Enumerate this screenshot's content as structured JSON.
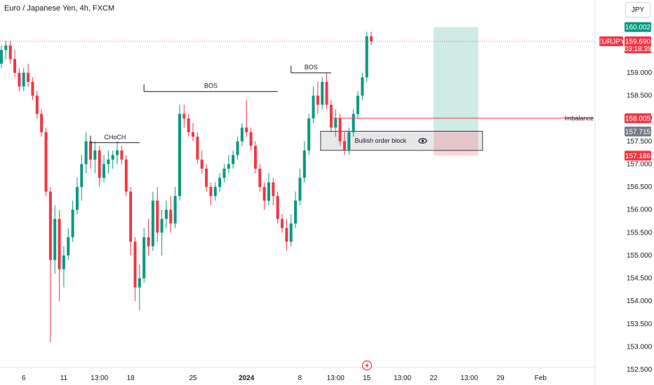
{
  "header": {
    "title": "Euro / Japanese Yen, 4h, FXCM",
    "currency": "JPY"
  },
  "chart_data": {
    "type": "candlestick",
    "symbol": "EURJPY",
    "ylim": [
      152.5,
      160.5
    ],
    "y_ticks": [
      "152.500",
      "153.000",
      "153.500",
      "154.000",
      "154.500",
      "155.000",
      "155.500",
      "156.000",
      "156.500",
      "157.000",
      "157.500",
      "158.000",
      "158.500",
      "159.000"
    ],
    "x_ticks": [
      {
        "label": "6",
        "i": 5
      },
      {
        "label": "11",
        "i": 14
      },
      {
        "label": "13:00",
        "i": 22
      },
      {
        "label": "18",
        "i": 29
      },
      {
        "label": "25",
        "i": 43
      },
      {
        "label": "2024",
        "i": 55,
        "bold": true
      },
      {
        "label": "8",
        "i": 67
      },
      {
        "label": "13:00",
        "i": 75
      },
      {
        "label": "15",
        "i": 82
      },
      {
        "label": "13:00",
        "i": 90
      },
      {
        "label": "22",
        "i": 97
      },
      {
        "label": "13:00",
        "i": 105
      },
      {
        "label": "29",
        "i": 112
      },
      {
        "label": "Feb",
        "i": 121
      }
    ],
    "current_price": {
      "value": "159.690",
      "label": "EURJPY",
      "countdown": "03:18:39",
      "y": 159.69
    },
    "price_tags": [
      {
        "value": "160.002",
        "y": 160.002,
        "color": "#089981"
      },
      {
        "value": "158.005",
        "y": 158.005,
        "color": "#f23645"
      },
      {
        "value": "157.715",
        "y": 157.715,
        "color": "#787b86"
      },
      {
        "value": "157.186",
        "y": 157.186,
        "color": "#f23645"
      }
    ],
    "annotations": {
      "choch": {
        "label": "CHoCH",
        "y": 157.47,
        "i0": 20,
        "i1": 31
      },
      "bos1": {
        "label": "BOS",
        "y": 158.59,
        "i0": 32,
        "i1": 62
      },
      "bos2": {
        "label": "BOS",
        "y": 159.0,
        "i0": 65,
        "i1": 74
      },
      "imbalance": {
        "label": "Imbalance",
        "y": 158.005,
        "i0": 73
      },
      "order_block": {
        "label": "Bullish order block",
        "top": 157.72,
        "bottom": 157.3,
        "i0": 71,
        "i1": 108
      },
      "position": {
        "entry": 157.72,
        "target": 160.002,
        "stop": 157.186,
        "i0": 97,
        "i1": 107
      }
    },
    "candles": [
      [
        159.2,
        159.6,
        159.1,
        159.5
      ],
      [
        159.5,
        159.7,
        159.3,
        159.6
      ],
      [
        159.6,
        159.7,
        159.2,
        159.3
      ],
      [
        159.3,
        159.5,
        158.9,
        159.0
      ],
      [
        159.0,
        159.1,
        158.6,
        158.7
      ],
      [
        158.7,
        159.1,
        158.6,
        159.0
      ],
      [
        159.0,
        159.2,
        158.7,
        158.8
      ],
      [
        158.8,
        158.9,
        158.4,
        158.5
      ],
      [
        158.5,
        158.6,
        158.0,
        158.1
      ],
      [
        158.1,
        158.2,
        157.6,
        157.7
      ],
      [
        157.7,
        157.8,
        156.3,
        156.4
      ],
      [
        156.4,
        156.5,
        153.1,
        154.9
      ],
      [
        154.9,
        156.1,
        154.6,
        155.8
      ],
      [
        155.8,
        156.0,
        154.0,
        154.7
      ],
      [
        154.7,
        155.2,
        154.3,
        155.0
      ],
      [
        155.0,
        155.6,
        154.9,
        155.4
      ],
      [
        155.4,
        156.2,
        155.3,
        156.0
      ],
      [
        156.0,
        156.7,
        155.9,
        156.5
      ],
      [
        156.5,
        157.2,
        156.2,
        157.0
      ],
      [
        157.0,
        157.7,
        156.8,
        157.5
      ],
      [
        157.5,
        157.6,
        156.9,
        157.1
      ],
      [
        157.1,
        157.5,
        156.8,
        157.3
      ],
      [
        157.3,
        157.4,
        156.5,
        156.7
      ],
      [
        156.7,
        157.2,
        156.6,
        157.0
      ],
      [
        157.0,
        157.3,
        156.8,
        157.1
      ],
      [
        157.1,
        157.3,
        156.9,
        157.2
      ],
      [
        157.2,
        157.5,
        157.0,
        157.3
      ],
      [
        157.3,
        157.4,
        157.0,
        157.1
      ],
      [
        157.1,
        157.2,
        156.3,
        156.4
      ],
      [
        156.4,
        156.5,
        155.0,
        155.3
      ],
      [
        155.3,
        155.4,
        154.0,
        154.3
      ],
      [
        154.3,
        154.8,
        153.8,
        154.5
      ],
      [
        154.5,
        155.6,
        154.4,
        155.4
      ],
      [
        155.4,
        155.8,
        155.0,
        155.2
      ],
      [
        155.2,
        156.4,
        155.1,
        156.2
      ],
      [
        156.2,
        156.5,
        155.3,
        155.5
      ],
      [
        155.5,
        156.0,
        155.0,
        155.8
      ],
      [
        155.8,
        156.2,
        155.6,
        156.0
      ],
      [
        156.0,
        156.3,
        155.5,
        155.7
      ],
      [
        155.7,
        156.5,
        155.6,
        156.3
      ],
      [
        156.3,
        158.3,
        156.2,
        158.1
      ],
      [
        158.1,
        158.3,
        157.8,
        158.0
      ],
      [
        158.0,
        158.1,
        157.6,
        157.7
      ],
      [
        157.7,
        157.9,
        157.5,
        157.6
      ],
      [
        157.6,
        157.7,
        157.0,
        157.1
      ],
      [
        157.1,
        157.3,
        156.8,
        156.9
      ],
      [
        156.9,
        157.0,
        156.4,
        156.5
      ],
      [
        156.5,
        156.6,
        156.1,
        156.3
      ],
      [
        156.3,
        156.6,
        156.2,
        156.5
      ],
      [
        156.5,
        156.8,
        156.4,
        156.7
      ],
      [
        156.7,
        157.0,
        156.6,
        156.9
      ],
      [
        156.9,
        157.2,
        156.8,
        157.0
      ],
      [
        157.0,
        157.3,
        156.9,
        157.2
      ],
      [
        157.2,
        157.6,
        157.1,
        157.5
      ],
      [
        157.5,
        157.9,
        157.4,
        157.8
      ],
      [
        157.8,
        158.4,
        157.6,
        157.7
      ],
      [
        157.7,
        157.8,
        157.3,
        157.4
      ],
      [
        157.4,
        157.5,
        156.8,
        156.9
      ],
      [
        156.9,
        157.0,
        156.4,
        156.5
      ],
      [
        156.5,
        156.6,
        156.0,
        156.2
      ],
      [
        156.2,
        156.8,
        156.1,
        156.6
      ],
      [
        156.6,
        156.7,
        156.1,
        156.3
      ],
      [
        156.3,
        156.4,
        155.7,
        155.8
      ],
      [
        155.8,
        155.9,
        155.5,
        155.6
      ],
      [
        155.6,
        155.8,
        155.1,
        155.3
      ],
      [
        155.3,
        155.9,
        155.2,
        155.7
      ],
      [
        155.7,
        156.4,
        155.6,
        156.2
      ],
      [
        156.2,
        156.9,
        156.1,
        156.7
      ],
      [
        156.7,
        157.5,
        156.6,
        157.3
      ],
      [
        157.3,
        158.1,
        157.2,
        158.0
      ],
      [
        158.0,
        158.7,
        157.9,
        158.5
      ],
      [
        158.5,
        158.8,
        158.1,
        158.3
      ],
      [
        158.3,
        158.9,
        158.2,
        158.8
      ],
      [
        158.8,
        159.0,
        158.2,
        158.3
      ],
      [
        158.3,
        158.4,
        157.7,
        157.8
      ],
      [
        157.8,
        158.2,
        157.6,
        158.0
      ],
      [
        158.0,
        158.1,
        157.4,
        157.5
      ],
      [
        157.5,
        157.7,
        157.2,
        157.3
      ],
      [
        157.3,
        157.8,
        157.2,
        157.7
      ],
      [
        157.7,
        158.2,
        157.6,
        158.1
      ],
      [
        158.1,
        158.6,
        158.0,
        158.5
      ],
      [
        158.5,
        159.0,
        158.4,
        158.9
      ],
      [
        158.9,
        159.9,
        158.8,
        159.8
      ],
      [
        159.8,
        159.9,
        159.6,
        159.69
      ]
    ]
  }
}
